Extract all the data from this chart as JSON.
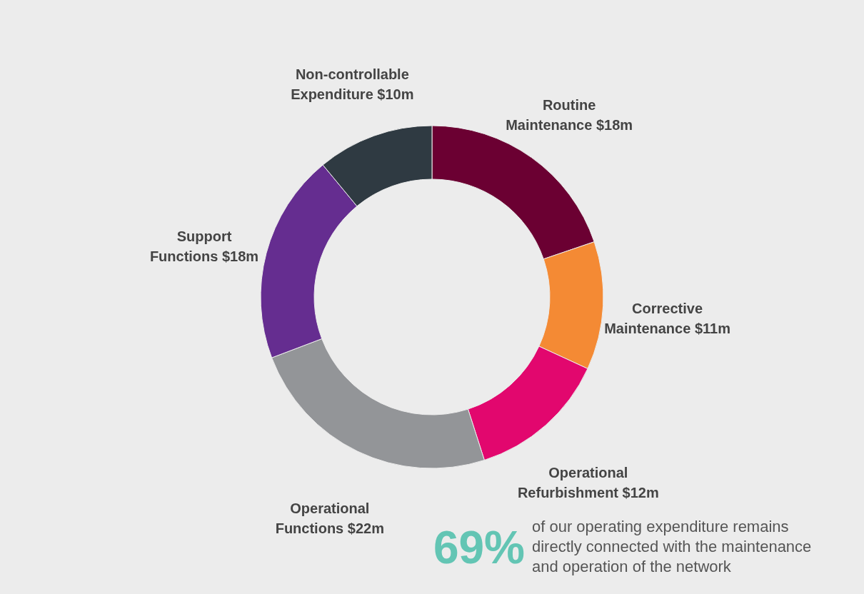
{
  "chart_data": {
    "type": "donut",
    "categories": [
      "Routine Maintenance",
      "Corrective Maintenance",
      "Operational Refurbishment",
      "Operational Functions",
      "Support Functions",
      "Non-controllable Expenditure"
    ],
    "values": [
      18,
      11,
      12,
      22,
      18,
      10
    ],
    "value_labels": [
      "$18m",
      "$11m",
      "$12m",
      "$22m",
      "$18m",
      "$10m"
    ],
    "colors": [
      "#6b0032",
      "#f48a34",
      "#e2076e",
      "#939598",
      "#652d90",
      "#2f3a42"
    ],
    "legend": false,
    "annotations": [
      "69%",
      "of our operating expenditure remains directly connected with the maintenance and operation of the network"
    ]
  }
}
